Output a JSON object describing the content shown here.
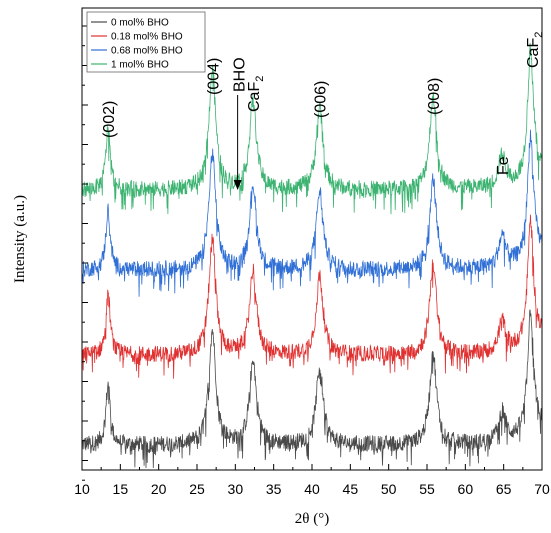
{
  "chart_data": {
    "type": "line",
    "xlabel": "2θ (°)",
    "ylabel": "Intensity (a.u.)",
    "xlim": [
      10,
      70
    ],
    "x_ticks": [
      10,
      15,
      20,
      25,
      30,
      35,
      40,
      45,
      50,
      55,
      60,
      65,
      70
    ],
    "y_ticks_shown": false,
    "grid": false,
    "legend": {
      "position": "top-left",
      "entries": [
        "0 mol% BHO",
        "0.18 mol% BHO",
        "0.68 mol% BHO",
        "1 mol% BHO"
      ]
    },
    "series": [
      {
        "name": "0 mol% BHO",
        "color": "#4a4a4a",
        "stack_level": 0
      },
      {
        "name": "0.18 mol% BHO",
        "color": "#e03030",
        "stack_level": 1
      },
      {
        "name": "0.68 mol% BHO",
        "color": "#2f6fd6",
        "stack_level": 2
      },
      {
        "name": "1 mol% BHO",
        "color": "#3cb371",
        "stack_level": 3
      }
    ],
    "peaks": [
      {
        "x": 13.4,
        "height": 0.5
      },
      {
        "x": 27.0,
        "height": 0.95
      },
      {
        "x": 32.3,
        "height": 0.7
      },
      {
        "x": 41.0,
        "height": 0.65
      },
      {
        "x": 55.8,
        "height": 0.75
      },
      {
        "x": 64.8,
        "height": 0.25
      },
      {
        "x": 68.5,
        "height": 1.0
      }
    ],
    "annotations": [
      {
        "text": "(002)",
        "x": 13.4
      },
      {
        "text": "(004)",
        "x": 27.0
      },
      {
        "text": "(006)",
        "x": 41.0
      },
      {
        "text": "(008)",
        "x": 55.8
      },
      {
        "text": "BHO",
        "x": 30.3,
        "arrow": true
      },
      {
        "text": "CaF",
        "sub": "2",
        "x": 32.3
      },
      {
        "text": "Fe",
        "x": 64.8
      },
      {
        "text": "CaF",
        "sub": "2",
        "x": 68.7
      }
    ]
  }
}
